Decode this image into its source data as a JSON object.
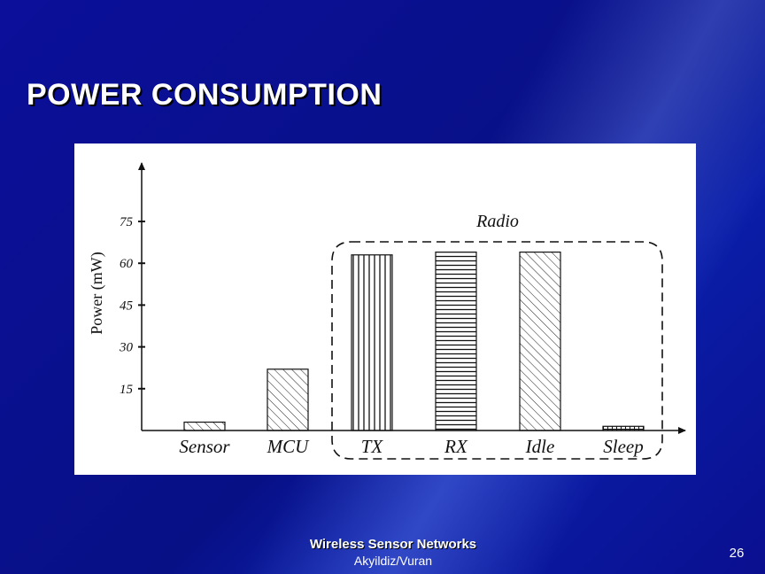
{
  "slide": {
    "title": "POWER CONSUMPTION",
    "footer_title": "Wireless Sensor Networks",
    "footer_authors": "Akyildiz/Vuran",
    "page_number": "26"
  },
  "chart_data": {
    "type": "bar",
    "title": "",
    "xlabel": "",
    "ylabel": "Power (mW)",
    "ylim": [
      0,
      85
    ],
    "yticks": [
      15,
      30,
      45,
      60,
      75
    ],
    "categories": [
      "Sensor",
      "MCU",
      "TX",
      "RX",
      "Idle",
      "Sleep"
    ],
    "values": [
      3,
      22,
      63,
      64,
      64,
      1.5
    ],
    "patterns": [
      "diagonal-hatch",
      "diagonal-hatch",
      "vertical-lines",
      "horizontal-lines",
      "diagonal-hatch",
      "grid"
    ],
    "group_annotation": {
      "label": "Radio",
      "categories": [
        "TX",
        "RX",
        "Idle",
        "Sleep"
      ],
      "style": "dashed-box"
    },
    "grid": false
  }
}
